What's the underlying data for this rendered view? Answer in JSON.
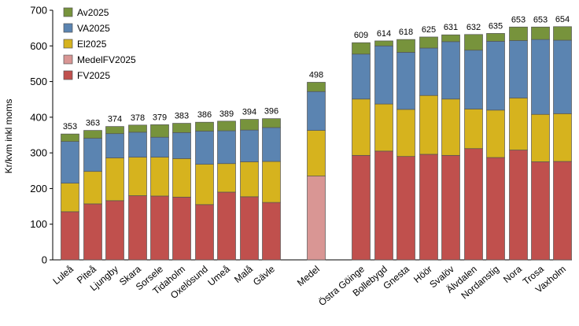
{
  "chart_data": {
    "type": "bar",
    "stacked": true,
    "ylabel": "Kr/kvm inkl moms",
    "ylim": [
      0,
      700
    ],
    "yticks": [
      0,
      100,
      200,
      300,
      400,
      500,
      600,
      700
    ],
    "grid": false,
    "legend_position": "top-left",
    "categories": [
      "Luleå",
      "Piteå",
      "Ljungby",
      "Skara",
      "Sorsele",
      "Tidaholm",
      "Oxelösund",
      "Umeå",
      "Malå",
      "Gävle",
      "Medel",
      "Östra Göinge",
      "Bollebygd",
      "Gnesta",
      "Höör",
      "Svalöv",
      "Älvdalen",
      "Nordanstig",
      "Nora",
      "Trosa",
      "Vaxholm"
    ],
    "totals": [
      353,
      363,
      374,
      378,
      379,
      383,
      386,
      389,
      394,
      396,
      498,
      609,
      614,
      618,
      625,
      631,
      632,
      635,
      653,
      653,
      654
    ],
    "legend": [
      {
        "name": "Av2025",
        "color": "#77933c"
      },
      {
        "name": "VA2025",
        "color": "#5b84b1"
      },
      {
        "name": "El2025",
        "color": "#d6b31e"
      },
      {
        "name": "MedelFV2025",
        "color": "#d99694"
      },
      {
        "name": "FV2025",
        "color": "#c0504d"
      }
    ],
    "series": [
      {
        "name": "FV2025",
        "color": "#c0504d",
        "values": [
          135,
          157,
          166,
          180,
          179,
          176,
          155,
          190,
          177,
          161,
          0,
          293,
          305,
          290,
          296,
          293,
          312,
          287,
          308,
          275,
          276
        ]
      },
      {
        "name": "MedelFV2025",
        "color": "#d99694",
        "values": [
          0,
          0,
          0,
          0,
          0,
          0,
          0,
          0,
          0,
          0,
          235,
          0,
          0,
          0,
          0,
          0,
          0,
          0,
          0,
          0,
          0
        ]
      },
      {
        "name": "El2025",
        "color": "#d6b31e",
        "values": [
          80,
          91,
          120,
          108,
          109,
          108,
          113,
          80,
          98,
          115,
          128,
          158,
          132,
          132,
          165,
          158,
          111,
          133,
          146,
          133,
          134
        ]
      },
      {
        "name": "VA2025",
        "color": "#5b84b1",
        "values": [
          117,
          93,
          68,
          70,
          56,
          73,
          93,
          92,
          89,
          95,
          109,
          126,
          163,
          160,
          133,
          161,
          165,
          193,
          161,
          210,
          206
        ]
      },
      {
        "name": "Av2025",
        "color": "#77933c",
        "values": [
          21,
          22,
          20,
          20,
          35,
          26,
          25,
          27,
          30,
          25,
          26,
          32,
          14,
          36,
          31,
          19,
          44,
          22,
          38,
          35,
          38
        ]
      }
    ]
  }
}
